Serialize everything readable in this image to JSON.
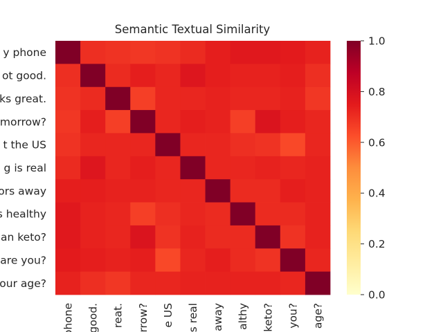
{
  "chart_data": {
    "type": "heatmap",
    "title": "Semantic Textual Similarity",
    "xlabel": "",
    "ylabel": "",
    "y_labels": [
      "y phone",
      "ot good.",
      "ks great.",
      "morrow?",
      "t the US",
      "g is real",
      "ors away",
      "s healthy",
      "an keto?",
      "are you?",
      "our age?"
    ],
    "x_labels": [
      "phone",
      "good.",
      "reat.",
      "rrow?",
      "e US",
      "s real",
      "away",
      "althy",
      "keto?",
      "you?",
      "age?"
    ],
    "values": [
      [
        1.0,
        0.7,
        0.69,
        0.68,
        0.69,
        0.71,
        0.74,
        0.76,
        0.76,
        0.75,
        0.73
      ],
      [
        0.7,
        1.0,
        0.71,
        0.74,
        0.72,
        0.77,
        0.74,
        0.73,
        0.73,
        0.74,
        0.7
      ],
      [
        0.69,
        0.71,
        1.0,
        0.66,
        0.72,
        0.72,
        0.73,
        0.72,
        0.72,
        0.73,
        0.68
      ],
      [
        0.68,
        0.74,
        0.66,
        1.0,
        0.72,
        0.74,
        0.73,
        0.66,
        0.78,
        0.74,
        0.72
      ],
      [
        0.69,
        0.72,
        0.72,
        0.72,
        1.0,
        0.72,
        0.72,
        0.7,
        0.69,
        0.64,
        0.72
      ],
      [
        0.71,
        0.77,
        0.72,
        0.74,
        0.72,
        1.0,
        0.72,
        0.72,
        0.73,
        0.72,
        0.73
      ],
      [
        0.74,
        0.74,
        0.73,
        0.73,
        0.72,
        0.72,
        1.0,
        0.71,
        0.71,
        0.74,
        0.73
      ],
      [
        0.76,
        0.73,
        0.72,
        0.66,
        0.7,
        0.72,
        0.71,
        1.0,
        0.71,
        0.71,
        0.73
      ],
      [
        0.76,
        0.73,
        0.72,
        0.78,
        0.69,
        0.73,
        0.71,
        0.71,
        1.0,
        0.69,
        0.73
      ],
      [
        0.75,
        0.74,
        0.73,
        0.74,
        0.64,
        0.72,
        0.74,
        0.71,
        0.69,
        1.0,
        0.72
      ],
      [
        0.73,
        0.7,
        0.68,
        0.72,
        0.72,
        0.73,
        0.73,
        0.73,
        0.73,
        0.72,
        1.0
      ]
    ],
    "colorbar": {
      "vmin": 0.0,
      "vmax": 1.0,
      "ticks": [
        "0.0",
        "0.2",
        "0.4",
        "0.6",
        "0.8",
        "1.0"
      ]
    },
    "colormap": "YlOrRd",
    "colormap_stops": [
      "#ffffcc",
      "#ffeda0",
      "#fed976",
      "#feb24c",
      "#fd8d3c",
      "#fc4e2a",
      "#e31a1c",
      "#bd0026",
      "#800026"
    ]
  }
}
